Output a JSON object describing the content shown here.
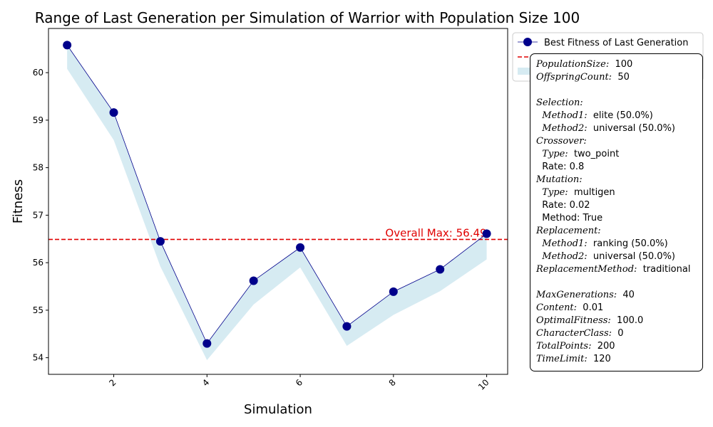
{
  "chart_data": {
    "type": "line",
    "title": "Range of Last Generation per Simulation of Warrior with Population Size 100",
    "xlabel": "Simulation",
    "ylabel": "Fitness",
    "xlim": [
      0.6,
      10.45
    ],
    "ylim": [
      53.65,
      60.93
    ],
    "x_ticks": [
      2,
      4,
      6,
      8,
      10
    ],
    "y_ticks": [
      54,
      55,
      56,
      57,
      58,
      59,
      60
    ],
    "x": [
      1,
      2,
      3,
      4,
      5,
      6,
      7,
      8,
      9,
      10
    ],
    "series": [
      {
        "name": "Best Fitness of Last Generation",
        "values": [
          60.58,
          59.16,
          56.45,
          54.3,
          55.62,
          56.32,
          54.66,
          55.39,
          55.86,
          56.61
        ],
        "color": "#00008b",
        "marker": "circle"
      }
    ],
    "range_band": {
      "upper": [
        60.58,
        59.16,
        56.45,
        54.3,
        55.62,
        56.32,
        54.66,
        55.39,
        55.86,
        56.61
      ],
      "lower": [
        60.08,
        58.58,
        55.92,
        53.95,
        55.12,
        55.9,
        54.25,
        54.9,
        55.4,
        56.07
      ],
      "color": "#add8e6"
    },
    "hline": {
      "value": 56.49,
      "color": "#e00000",
      "style": "dashed",
      "label": "Overall Max: 56.49"
    },
    "grid": false,
    "legend_position": "upper-left outside right",
    "legend": [
      "Best Fitness of Last Generation"
    ]
  },
  "info_box": {
    "lines": [
      {
        "key": "PopulationSize",
        "value": "100"
      },
      {
        "key": "OffspringCount",
        "value": "50"
      },
      {
        "blank": true
      },
      {
        "key": "Selection",
        "value": ""
      },
      {
        "indent": true,
        "key": "Method1",
        "value": "elite (50.0%)"
      },
      {
        "indent": true,
        "key": "Method2",
        "value": "universal (50.0%)"
      },
      {
        "key": "Crossover",
        "value": ""
      },
      {
        "indent": true,
        "key": "Type",
        "value": "two_point"
      },
      {
        "indent": true,
        "text": "Rate: 0.8"
      },
      {
        "key": "Mutation",
        "value": ""
      },
      {
        "indent": true,
        "key": "Type",
        "value": "multigen"
      },
      {
        "indent": true,
        "text": "Rate: 0.02"
      },
      {
        "indent": true,
        "text": "Method: True"
      },
      {
        "key": "Replacement",
        "value": ""
      },
      {
        "indent": true,
        "key": "Method1",
        "value": "ranking (50.0%)"
      },
      {
        "indent": true,
        "key": "Method2",
        "value": "universal (50.0%)"
      },
      {
        "key": "ReplacementMethod",
        "value": "traditional"
      },
      {
        "blank": true
      },
      {
        "key": "MaxGenerations",
        "value": "40"
      },
      {
        "key": "Content",
        "value": "0.01"
      },
      {
        "key": "OptimalFitness",
        "value": "100.0"
      },
      {
        "key": "CharacterClass",
        "value": "0"
      },
      {
        "key": "TotalPoints",
        "value": "200"
      },
      {
        "key": "TimeLimit",
        "value": "120"
      }
    ]
  }
}
